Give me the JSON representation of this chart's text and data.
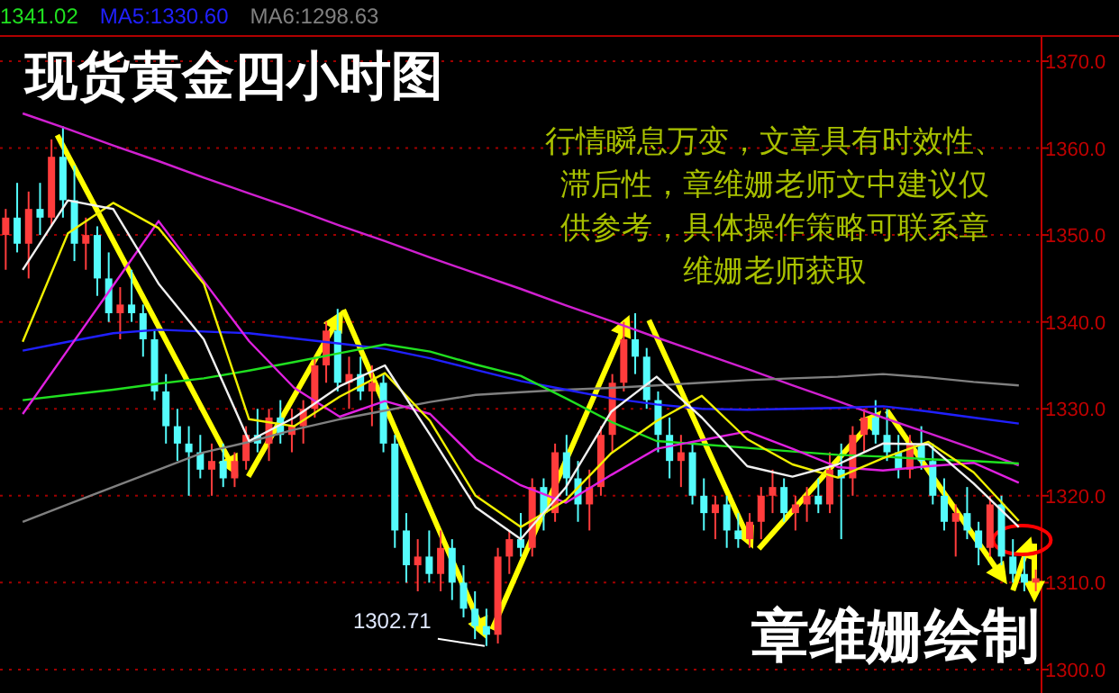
{
  "chart_data": [
    {
      "type": "candlestick",
      "title": "现货黄金四小时图",
      "categories": [
        null,
        null,
        null,
        null,
        null,
        null,
        null,
        null,
        null,
        null,
        null,
        null,
        null,
        null,
        null,
        null,
        null,
        null,
        null,
        null,
        null,
        null,
        null,
        null,
        null,
        null,
        null,
        null,
        null,
        null,
        null,
        null,
        null,
        null,
        null,
        null,
        null,
        null,
        null,
        null,
        null,
        null,
        null,
        null,
        null,
        null,
        null,
        null,
        null,
        null,
        null,
        null,
        null,
        null,
        null,
        null,
        null,
        null,
        null,
        null,
        null,
        null,
        null,
        null,
        null,
        null,
        null,
        null,
        null,
        null,
        null,
        null,
        null,
        null,
        null,
        null,
        null,
        null,
        null,
        null,
        null,
        null,
        null,
        null,
        null,
        null,
        null,
        null,
        null,
        null,
        null
      ],
      "ohlc": [
        [
          1350,
          1353,
          1346,
          1352
        ],
        [
          1352,
          1356,
          1348,
          1349
        ],
        [
          1349,
          1355,
          1345,
          1353
        ],
        [
          1353,
          1356,
          1350,
          1352
        ],
        [
          1352,
          1361,
          1351,
          1359
        ],
        [
          1359,
          1362.5,
          1352,
          1354
        ],
        [
          1354,
          1358,
          1347,
          1349
        ],
        [
          1349,
          1352,
          1346,
          1350
        ],
        [
          1350,
          1351,
          1343,
          1345
        ],
        [
          1345,
          1348,
          1340,
          1341
        ],
        [
          1341,
          1344,
          1338,
          1342
        ],
        [
          1342,
          1346,
          1340,
          1341
        ],
        [
          1341,
          1342,
          1336,
          1338
        ],
        [
          1338,
          1339,
          1331,
          1332
        ],
        [
          1332,
          1334,
          1326,
          1328
        ],
        [
          1328,
          1330,
          1324,
          1326
        ],
        [
          1326,
          1328,
          1320,
          1325
        ],
        [
          1325,
          1327,
          1322,
          1323
        ],
        [
          1323,
          1326,
          1320,
          1324
        ],
        [
          1324,
          1326,
          1321,
          1322
        ],
        [
          1322,
          1325,
          1321,
          1324
        ],
        [
          1324,
          1328,
          1323,
          1327
        ],
        [
          1327,
          1330,
          1325,
          1326
        ],
        [
          1326,
          1330,
          1324,
          1329
        ],
        [
          1329,
          1331,
          1326,
          1327
        ],
        [
          1327,
          1330,
          1325,
          1328
        ],
        [
          1328,
          1331,
          1326,
          1330
        ],
        [
          1330,
          1336,
          1329,
          1335
        ],
        [
          1335,
          1340,
          1333,
          1339
        ],
        [
          1339,
          1341.5,
          1332,
          1333
        ],
        [
          1333,
          1336,
          1330,
          1334
        ],
        [
          1334,
          1336,
          1331,
          1332
        ],
        [
          1332,
          1335,
          1328,
          1333
        ],
        [
          1333,
          1334,
          1325,
          1326
        ],
        [
          1326,
          1327,
          1314,
          1316
        ],
        [
          1316,
          1318,
          1310,
          1312
        ],
        [
          1312,
          1315,
          1309,
          1313
        ],
        [
          1313,
          1316,
          1310,
          1311
        ],
        [
          1311,
          1316,
          1309,
          1314
        ],
        [
          1314,
          1315,
          1308,
          1310
        ],
        [
          1310,
          1312,
          1306,
          1307
        ],
        [
          1307,
          1309,
          1303.5,
          1305
        ],
        [
          1305,
          1307,
          1302.71,
          1304
        ],
        [
          1304,
          1314,
          1303,
          1313
        ],
        [
          1313,
          1316,
          1311,
          1315
        ],
        [
          1315,
          1318,
          1313,
          1314
        ],
        [
          1314,
          1322,
          1313,
          1321
        ],
        [
          1321,
          1322,
          1316,
          1318
        ],
        [
          1318,
          1326,
          1317,
          1325
        ],
        [
          1325,
          1327,
          1320,
          1322
        ],
        [
          1322,
          1324,
          1317,
          1319
        ],
        [
          1319,
          1323,
          1316,
          1321
        ],
        [
          1321,
          1328,
          1320,
          1327
        ],
        [
          1327,
          1334,
          1325,
          1333
        ],
        [
          1333,
          1340,
          1332,
          1338
        ],
        [
          1338,
          1341,
          1334,
          1336
        ],
        [
          1336,
          1337,
          1330,
          1331
        ],
        [
          1331,
          1332,
          1325,
          1327
        ],
        [
          1327,
          1329,
          1322,
          1324
        ],
        [
          1324,
          1327,
          1321,
          1325
        ],
        [
          1325,
          1326,
          1319,
          1320
        ],
        [
          1320,
          1322,
          1316,
          1318
        ],
        [
          1318,
          1320,
          1315,
          1319
        ],
        [
          1319,
          1320,
          1314,
          1316
        ],
        [
          1316,
          1318,
          1314,
          1315
        ],
        [
          1315,
          1318,
          1314,
          1317
        ],
        [
          1317,
          1321,
          1315,
          1320
        ],
        [
          1320,
          1323,
          1318,
          1321
        ],
        [
          1321,
          1322,
          1317,
          1318
        ],
        [
          1318,
          1320,
          1316,
          1319
        ],
        [
          1319,
          1321,
          1317,
          1320
        ],
        [
          1320,
          1322,
          1318,
          1319
        ],
        [
          1319,
          1325,
          1318,
          1323
        ],
        [
          1323,
          1326,
          1315,
          1322
        ],
        [
          1322,
          1328,
          1320,
          1327
        ],
        [
          1327,
          1330,
          1325,
          1329
        ],
        [
          1329,
          1331,
          1326,
          1327
        ],
        [
          1327,
          1330,
          1324,
          1325
        ],
        [
          1325,
          1327,
          1322,
          1323
        ],
        [
          1323,
          1327,
          1322,
          1326
        ],
        [
          1326,
          1328,
          1323,
          1324
        ],
        [
          1324,
          1326,
          1319,
          1320
        ],
        [
          1320,
          1322,
          1316,
          1317
        ],
        [
          1317,
          1319,
          1313,
          1318
        ],
        [
          1318,
          1321,
          1315,
          1316
        ],
        [
          1316,
          1317,
          1312,
          1314
        ],
        [
          1314,
          1320,
          1313,
          1319
        ],
        [
          1319,
          1320,
          1312,
          1313
        ],
        [
          1313,
          1315,
          1310,
          1311
        ],
        [
          1311,
          1313,
          1309,
          1310
        ],
        [
          1310,
          1311.5,
          1309,
          1310.5
        ]
      ],
      "colors": [
        "#ff3c3c",
        "#54fcfc",
        "#ff3c3c",
        "#54fcfc",
        "#ff3c3c",
        "#54fcfc",
        "#54fcfc",
        "#ff3c3c",
        "#54fcfc",
        "#54fcfc",
        "#ff3c3c",
        "#54fcfc",
        "#54fcfc",
        "#54fcfc",
        "#54fcfc",
        "#54fcfc",
        "#54fcfc",
        "#54fcfc",
        "#ff3c3c",
        "#54fcfc",
        "#ff3c3c",
        "#ff3c3c",
        "#54fcfc",
        "#ff3c3c",
        "#54fcfc",
        "#ff3c3c",
        "#ff3c3c",
        "#ff3c3c",
        "#ff3c3c",
        "#54fcfc",
        "#ff3c3c",
        "#54fcfc",
        "#ff3c3c",
        "#54fcfc",
        "#54fcfc",
        "#54fcfc",
        "#ff3c3c",
        "#54fcfc",
        "#ff3c3c",
        "#54fcfc",
        "#54fcfc",
        "#54fcfc",
        "#54fcfc",
        "#ff3c3c",
        "#ff3c3c",
        "#54fcfc",
        "#ff3c3c",
        "#54fcfc",
        "#ff3c3c",
        "#54fcfc",
        "#54fcfc",
        "#ff3c3c",
        "#ff3c3c",
        "#ff3c3c",
        "#ff3c3c",
        "#54fcfc",
        "#54fcfc",
        "#54fcfc",
        "#54fcfc",
        "#ff3c3c",
        "#54fcfc",
        "#54fcfc",
        "#ff3c3c",
        "#54fcfc",
        "#54fcfc",
        "#ff3c3c",
        "#ff3c3c",
        "#ff3c3c",
        "#54fcfc",
        "#ff3c3c",
        "#ff3c3c",
        "#54fcfc",
        "#ff3c3c",
        "#54fcfc",
        "#ff3c3c",
        "#ff3c3c",
        "#54fcfc",
        "#54fcfc",
        "#54fcfc",
        "#ff3c3c",
        "#54fcfc",
        "#54fcfc",
        "#54fcfc",
        "#ff3c3c",
        "#54fcfc",
        "#54fcfc",
        "#ff3c3c",
        "#54fcfc",
        "#54fcfc",
        "#54fcfc",
        "#ff3c3c"
      ],
      "ylim": [
        1297.3,
        1372.9
      ],
      "yticks": [
        {
          "value": 1300,
          "label": "1300.0"
        },
        {
          "value": 1310,
          "label": "1310.0"
        },
        {
          "value": 1320,
          "label": "1320.0"
        },
        {
          "value": 1330,
          "label": "1330.0"
        },
        {
          "value": 1340,
          "label": "1340.0"
        },
        {
          "value": 1350,
          "label": "1350.0"
        },
        {
          "value": 1360,
          "label": "1360.0"
        },
        {
          "value": 1370,
          "label": "1370.0"
        }
      ],
      "grid": "y",
      "tick_labels": "y",
      "annotations": [
        "1341.02",
        "MA5:1330.60",
        "MA6:1298.63",
        "行情瞬息万变，文章具有时效性、滞后性，章维姗老师文中建议仅供参考，具体操作策略可联系章维姗老师获取",
        "章维姗绘制",
        "1302.71"
      ]
    },
    {
      "type": "line",
      "categories": [
        null,
        null,
        null,
        null,
        null,
        null,
        null,
        null,
        null,
        null,
        null,
        null,
        null,
        null,
        null,
        null,
        null,
        null,
        null,
        null,
        null,
        null,
        null
      ],
      "series": [
        {
          "color": "#d020d0",
          "values": [
            1364,
            1362.2,
            1360.3,
            1358.5,
            1356.6,
            1354.8,
            1353,
            1351.1,
            1349.3,
            1347.4,
            1345.6,
            1343.8,
            1341.9,
            1340.1,
            1338.2,
            1336.4,
            1334.6,
            1332.7,
            1330.9,
            1329,
            1327.2,
            1325.4,
            1323.5
          ]
        },
        {
          "color": "#808080",
          "values": [
            1317,
            1319,
            1321,
            1323,
            1325,
            1326.2,
            1327.6,
            1328.8,
            1329.8,
            1330.8,
            1331.6,
            1331.9,
            1332.2,
            1332.4,
            1332.7,
            1333,
            1333.3,
            1333.5,
            1333.7,
            1334,
            1333.6,
            1333.1,
            1332.7
          ]
        },
        {
          "color": "#2020ff",
          "values": [
            1336.7,
            1337.7,
            1338.7,
            1339.1,
            1338.9,
            1338.7,
            1338.1,
            1337.5,
            1336.9,
            1335.8,
            1334.5,
            1333.2,
            1332.2,
            1331.2,
            1330.5,
            1330,
            1329.9,
            1330,
            1330.1,
            1330.3,
            1329.7,
            1329,
            1328.3
          ]
        },
        {
          "color": "#20e020",
          "values": [
            1331,
            1331.6,
            1332.2,
            1332.9,
            1333.5,
            1334.4,
            1335.4,
            1336.4,
            1337.4,
            1336.6,
            1335.1,
            1333.8,
            1331.2,
            1328.5,
            1326.3,
            1325.9,
            1325.5,
            1325.1,
            1324.7,
            1324.5,
            1324.2,
            1324,
            1323.7
          ]
        },
        {
          "color": "#e020e0",
          "values": [
            1329.4,
            1336.8,
            1344.2,
            1351.6,
            1344.7,
            1337.8,
            1332.4,
            1329.1,
            1330.9,
            1329.4,
            1324.2,
            1321.2,
            1319.2,
            1322.4,
            1325.4,
            1326.4,
            1327.4,
            1325.4,
            1323.3,
            1322.9,
            1323.4,
            1323.8,
            1321.5
          ]
        },
        {
          "color": "#f0f000",
          "values": [
            1337.7,
            1350.2,
            1353.7,
            1350.8,
            1344.4,
            1328.8,
            1328,
            1331.4,
            1334.1,
            1328.6,
            1320,
            1316.4,
            1319.5,
            1324.9,
            1328.6,
            1331.5,
            1326.5,
            1323.6,
            1322.1,
            1324.3,
            1326.2,
            1322.7,
            1317.1
          ]
        },
        {
          "color": "#f0f0f0",
          "values": [
            1346,
            1354,
            1353,
            1344.4,
            1338,
            1326.3,
            1329,
            1332.6,
            1335,
            1327,
            1318.7,
            1315,
            1321,
            1329.7,
            1333.7,
            1329,
            1323.4,
            1322.2,
            1323.6,
            1326,
            1325.9,
            1321.4,
            1316.4
          ]
        }
      ],
      "ylim": [
        1297.3,
        1372.9
      ],
      "tick_labels": false
    }
  ]
}
